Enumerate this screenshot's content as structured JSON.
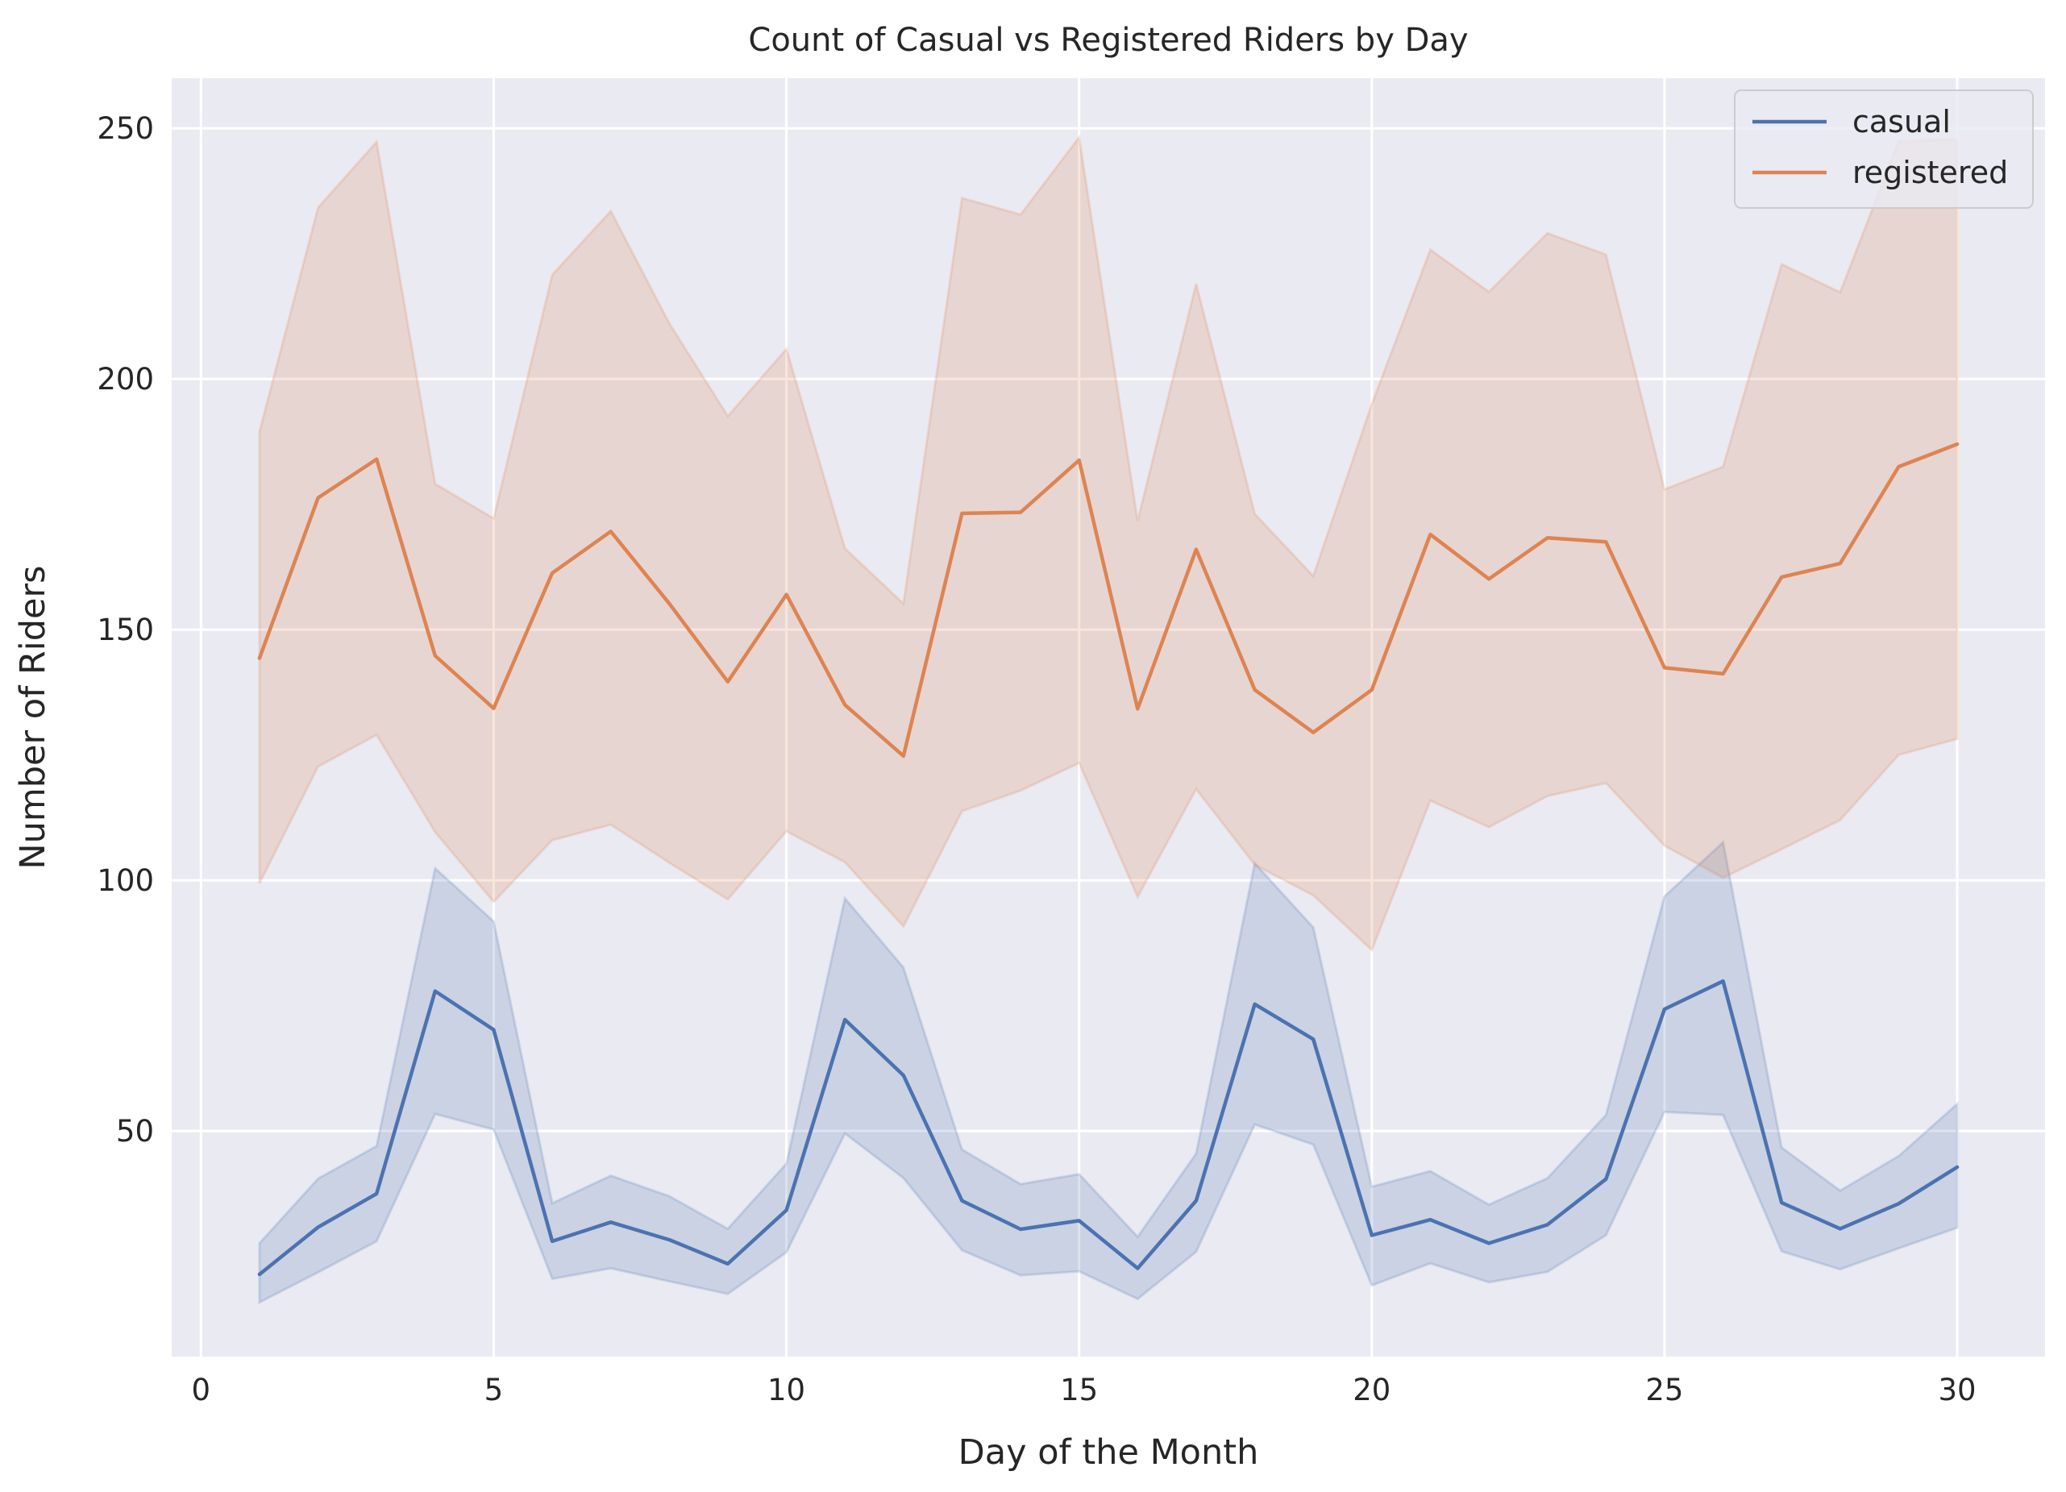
{
  "chart_data": {
    "type": "line",
    "title": "Count of Casual vs Registered Riders by Day",
    "xlabel": "Day of the Month",
    "ylabel": "Number of Riders",
    "xlim": [
      -0.5,
      31.5
    ],
    "ylim": [
      5,
      260
    ],
    "xticks": [
      0,
      5,
      10,
      15,
      20,
      25,
      30
    ],
    "yticks": [
      50,
      100,
      150,
      200,
      250
    ],
    "grid": true,
    "legend_position": "top-right",
    "x": [
      1,
      2,
      3,
      4,
      5,
      6,
      7,
      8,
      9,
      10,
      11,
      12,
      13,
      14,
      15,
      16,
      17,
      18,
      19,
      20,
      21,
      22,
      23,
      24,
      25,
      26,
      27,
      28,
      29,
      30
    ],
    "series": [
      {
        "name": "casual",
        "color": "#4c72b0",
        "values": [
          21.4,
          30.8,
          37.5,
          77.9,
          70.2,
          28.0,
          31.8,
          28.3,
          23.5,
          34.2,
          72.2,
          61.1,
          36.1,
          30.4,
          32.1,
          22.6,
          36.1,
          75.3,
          68.3,
          29.2,
          32.3,
          27.6,
          31.3,
          40.4,
          74.3,
          79.9,
          35.7,
          30.5,
          35.5,
          42.8
        ],
        "ci_low": [
          15.8,
          21.8,
          28.0,
          53.4,
          50.3,
          20.5,
          22.6,
          20.0,
          17.5,
          25.8,
          49.5,
          40.6,
          26.2,
          21.2,
          22.0,
          16.5,
          25.9,
          51.3,
          47.3,
          19.2,
          23.6,
          19.8,
          21.9,
          29.2,
          53.8,
          53.2,
          26.0,
          22.4,
          26.6,
          30.7
        ],
        "ci_high": [
          27.6,
          40.5,
          47.0,
          102.4,
          91.8,
          35.6,
          41.1,
          37.0,
          30.5,
          43.5,
          96.4,
          82.6,
          46.3,
          39.4,
          41.4,
          28.9,
          45.5,
          103.4,
          90.6,
          38.9,
          42.0,
          35.3,
          40.6,
          53.2,
          96.8,
          107.6,
          46.7,
          38.1,
          45.0,
          55.4
        ]
      },
      {
        "name": "registered",
        "color": "#dd8452",
        "values": [
          144.3,
          176.3,
          184.0,
          144.8,
          134.3,
          161.3,
          169.6,
          155.2,
          139.6,
          157.0,
          135.0,
          124.8,
          173.2,
          173.4,
          183.8,
          134.2,
          166.0,
          138.0,
          129.5,
          138.0,
          169.0,
          160.1,
          168.3,
          167.5,
          142.4,
          141.2,
          160.5,
          163.2,
          182.5,
          187.0
        ],
        "ci_low": [
          99.4,
          122.7,
          129.0,
          109.6,
          95.7,
          108.0,
          111.1,
          103.5,
          96.2,
          109.8,
          103.6,
          90.8,
          113.8,
          117.9,
          123.4,
          96.7,
          118.2,
          103.1,
          97.0,
          86.1,
          115.9,
          110.6,
          116.8,
          119.4,
          106.9,
          100.5,
          106.2,
          112.0,
          125.0,
          128.2
        ],
        "ci_high": [
          189.5,
          234.2,
          247.3,
          179.1,
          172.2,
          220.8,
          233.5,
          211.1,
          192.6,
          206.0,
          166.2,
          155.2,
          236.1,
          232.8,
          248.2,
          171.7,
          219.0,
          173.1,
          160.7,
          195.0,
          225.8,
          217.4,
          229.1,
          224.8,
          178.0,
          182.5,
          222.9,
          217.3,
          247.4,
          247.8
        ]
      }
    ]
  }
}
